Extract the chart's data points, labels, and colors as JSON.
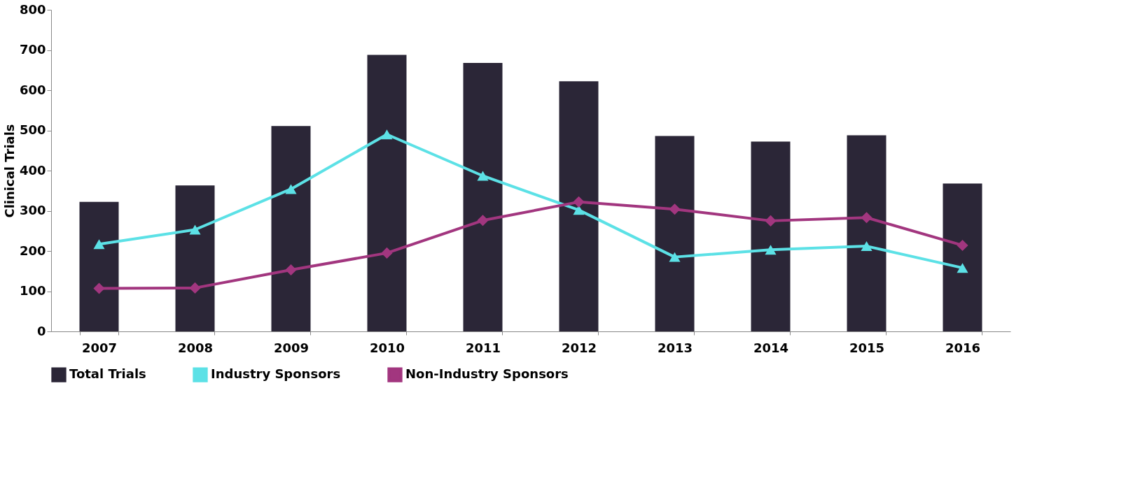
{
  "chart_data": {
    "type": "bar",
    "ylabel": "Clinical Trials",
    "categories": [
      "2007",
      "2008",
      "2009",
      "2010",
      "2011",
      "2012",
      "2013",
      "2014",
      "2015",
      "2016"
    ],
    "series": [
      {
        "name": "Total Trials",
        "color": "#2b2637",
        "values": [
          322,
          363,
          511,
          688,
          668,
          622,
          486,
          472,
          488,
          368
        ]
      },
      {
        "name": "Industry Sponsors",
        "type": "line",
        "marker": "triangle",
        "color": "#5ce1e6",
        "values": [
          217,
          253,
          354,
          490,
          387,
          302,
          185,
          203,
          212,
          158
        ]
      },
      {
        "name": "Non-Industry Sponsors",
        "type": "line",
        "marker": "diamond",
        "color": "#a2367f",
        "values": [
          107,
          108,
          153,
          195,
          276,
          322,
          304,
          275,
          283,
          214
        ]
      }
    ],
    "ylim": [
      0,
      800
    ],
    "yticks": [
      0,
      100,
      200,
      300,
      400,
      500,
      600,
      700,
      800
    ],
    "grid": false,
    "legend": "bottom"
  }
}
